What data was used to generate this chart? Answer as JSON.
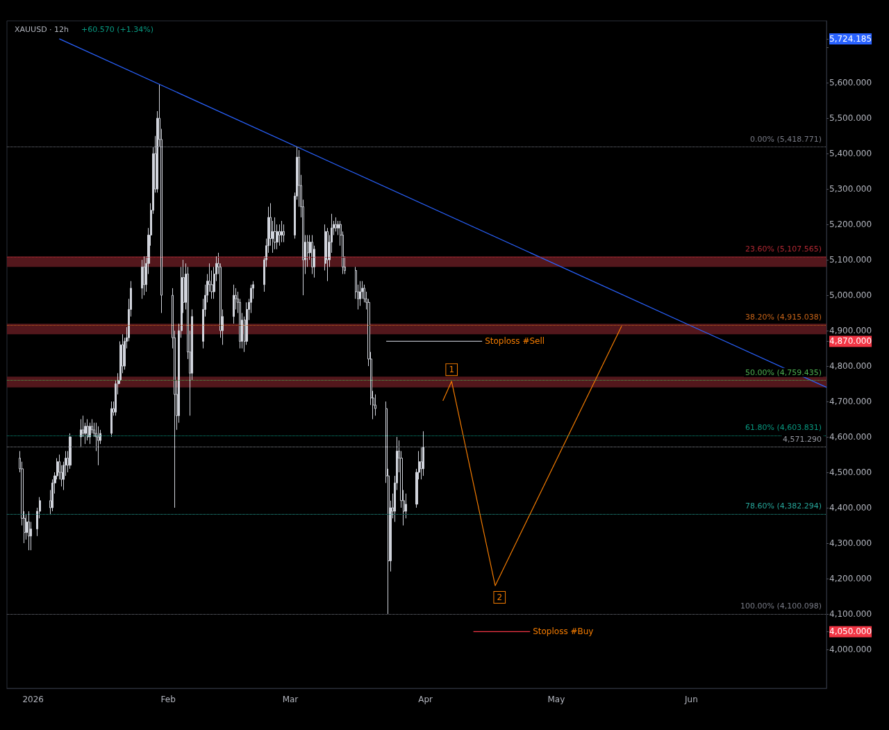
{
  "chart_data": {
    "type": "candlestick",
    "title": "XAUUSD · 12h",
    "subtitle": "+60.570 (+1.34%)",
    "xlim": [
      "2025-12-26",
      "2026-07-02"
    ],
    "xticks": [
      {
        "value": "2026-01-01",
        "label": "2026"
      },
      {
        "value": "2026-02-01",
        "label": "Feb"
      },
      {
        "value": "2026-03-01",
        "label": "Mar"
      },
      {
        "value": "2026-04-01",
        "label": "Apr"
      },
      {
        "value": "2026-05-01",
        "label": "May"
      },
      {
        "value": "2026-06-01",
        "label": "Jun"
      }
    ],
    "ylim": [
      3890,
      5775
    ],
    "yticks": [
      {
        "value": 4000,
        "label": "4,000.000"
      },
      {
        "value": 4100,
        "label": "4,100.000"
      },
      {
        "value": 4200,
        "label": "4,200.000"
      },
      {
        "value": 4300,
        "label": "4,300.000"
      },
      {
        "value": 4400,
        "label": "4,400.000"
      },
      {
        "value": 4500,
        "label": "4,500.000"
      },
      {
        "value": 4600,
        "label": "4,600.000"
      },
      {
        "value": 4700,
        "label": "4,700.000"
      },
      {
        "value": 4800,
        "label": "4,800.000"
      },
      {
        "value": 4900,
        "label": "4,900.000"
      },
      {
        "value": 5000,
        "label": "5,000.000"
      },
      {
        "value": 5100,
        "label": "5,100.000"
      },
      {
        "value": 5200,
        "label": "5,200.000"
      },
      {
        "value": 5300,
        "label": "5,300.000"
      },
      {
        "value": 5400,
        "label": "5,400.000"
      },
      {
        "value": 5500,
        "label": "5,500.000"
      },
      {
        "value": 5600,
        "label": "5,600.000"
      },
      {
        "value": 5700,
        "label": null
      },
      {
        "value": 5724.185,
        "label": "5,724.185"
      },
      {
        "value": 4870,
        "label": "4,870.000"
      },
      {
        "value": 4050,
        "label": "4,050.000"
      }
    ],
    "series": [
      {
        "color": "#d1d4dc",
        "x": [
          "2025-12-29T00:00",
          "2025-12-29T12:00",
          "2025-12-30T00:00",
          "2025-12-30T12:00",
          "2025-12-31T00:00",
          "2025-12-31T12:00",
          "2026-01-02T00:00",
          "2026-01-02T12:00",
          "2026-01-05T00:00",
          "2026-01-05T12:00",
          "2026-01-06T00:00",
          "2026-01-06T12:00",
          "2026-01-07T00:00",
          "2026-01-07T12:00",
          "2026-01-08T00:00",
          "2026-01-08T12:00",
          "2026-01-09T00:00",
          "2026-01-09T12:00",
          "2026-01-12T00:00",
          "2026-01-12T12:00",
          "2026-01-13T00:00",
          "2026-01-13T12:00",
          "2026-01-14T00:00",
          "2026-01-14T12:00",
          "2026-01-15T00:00",
          "2026-01-15T12:00",
          "2026-01-16T00:00",
          "2026-01-16T12:00",
          "2026-01-19T00:00",
          "2026-01-19T12:00",
          "2026-01-20T00:00",
          "2026-01-20T12:00",
          "2026-01-21T00:00",
          "2026-01-21T12:00",
          "2026-01-22T00:00",
          "2026-01-22T12:00",
          "2026-01-23T00:00",
          "2026-01-23T12:00",
          "2026-01-26T00:00",
          "2026-01-26T12:00",
          "2026-01-27T00:00",
          "2026-01-27T12:00",
          "2026-01-28T00:00",
          "2026-01-28T12:00",
          "2026-01-29T00:00",
          "2026-01-29T12:00",
          "2026-01-30T00:00",
          "2026-01-30T12:00",
          "2026-02-02T00:00",
          "2026-02-02T12:00",
          "2026-02-03T00:00",
          "2026-02-03T12:00",
          "2026-02-04T00:00",
          "2026-02-04T12:00",
          "2026-02-05T00:00",
          "2026-02-05T12:00",
          "2026-02-06T00:00",
          "2026-02-06T12:00",
          "2026-02-09T00:00",
          "2026-02-09T12:00",
          "2026-02-10T00:00",
          "2026-02-10T12:00",
          "2026-02-11T00:00",
          "2026-02-11T12:00",
          "2026-02-12T00:00",
          "2026-02-12T12:00",
          "2026-02-13T00:00",
          "2026-02-13T12:00",
          "2026-02-16T00:00",
          "2026-02-16T12:00",
          "2026-02-17T00:00",
          "2026-02-17T12:00",
          "2026-02-18T00:00",
          "2026-02-18T12:00",
          "2026-02-19T00:00",
          "2026-02-19T12:00",
          "2026-02-20T00:00",
          "2026-02-20T12:00",
          "2026-02-23T00:00",
          "2026-02-23T12:00",
          "2026-02-24T00:00",
          "2026-02-24T12:00",
          "2026-02-25T00:00",
          "2026-02-25T12:00",
          "2026-02-26T00:00",
          "2026-02-26T12:00",
          "2026-02-27T00:00",
          "2026-02-27T12:00",
          "2026-03-02T00:00",
          "2026-03-02T12:00",
          "2026-03-03T00:00",
          "2026-03-03T12:00",
          "2026-03-04T00:00",
          "2026-03-04T12:00",
          "2026-03-05T00:00",
          "2026-03-05T12:00",
          "2026-03-06T00:00",
          "2026-03-06T12:00",
          "2026-03-09T00:00",
          "2026-03-09T12:00",
          "2026-03-10T00:00",
          "2026-03-10T12:00",
          "2026-03-11T00:00",
          "2026-03-11T12:00",
          "2026-03-12T00:00",
          "2026-03-12T12:00",
          "2026-03-13T00:00",
          "2026-03-13T12:00",
          "2026-03-16T00:00",
          "2026-03-16T12:00",
          "2026-03-17T00:00",
          "2026-03-17T12:00",
          "2026-03-18T00:00",
          "2026-03-18T12:00",
          "2026-03-19T00:00",
          "2026-03-19T12:00",
          "2026-03-20T00:00",
          "2026-03-20T12:00",
          "2026-03-23T00:00",
          "2026-03-23T12:00",
          "2026-03-24T00:00",
          "2026-03-24T12:00",
          "2026-03-25T00:00",
          "2026-03-25T12:00",
          "2026-03-26T00:00",
          "2026-03-26T12:00",
          "2026-03-27T00:00",
          "2026-03-27T12:00",
          "2026-03-30T00:00",
          "2026-03-30T12:00",
          "2026-03-31T00:00",
          "2026-03-31T12:00"
        ],
        "ohlc": [
          [
            4540,
            4560,
            4500,
            4510
          ],
          [
            4510,
            4530,
            4350,
            4370
          ],
          [
            4370,
            4390,
            4300,
            4330
          ],
          [
            4330,
            4380,
            4310,
            4360
          ],
          [
            4360,
            4390,
            4280,
            4320
          ],
          [
            4320,
            4360,
            4280,
            4340
          ],
          [
            4340,
            4400,
            4320,
            4390
          ],
          [
            4390,
            4430,
            4370,
            4420
          ],
          [
            4420,
            4450,
            4380,
            4400
          ],
          [
            4400,
            4480,
            4390,
            4470
          ],
          [
            4470,
            4500,
            4440,
            4490
          ],
          [
            4490,
            4540,
            4480,
            4530
          ],
          [
            4530,
            4550,
            4480,
            4500
          ],
          [
            4500,
            4520,
            4460,
            4480
          ],
          [
            4480,
            4530,
            4450,
            4520
          ],
          [
            4520,
            4560,
            4490,
            4540
          ],
          [
            4540,
            4560,
            4500,
            4520
          ],
          [
            4520,
            4610,
            4510,
            4600
          ],
          [
            4600,
            4650,
            4570,
            4620
          ],
          [
            4620,
            4660,
            4600,
            4610
          ],
          [
            4610,
            4640,
            4580,
            4630
          ],
          [
            4630,
            4650,
            4590,
            4600
          ],
          [
            4600,
            4640,
            4580,
            4630
          ],
          [
            4630,
            4650,
            4610,
            4620
          ],
          [
            4620,
            4640,
            4600,
            4610
          ],
          [
            4610,
            4640,
            4560,
            4600
          ],
          [
            4600,
            4630,
            4520,
            4590
          ],
          [
            4590,
            4620,
            4580,
            4610
          ],
          [
            4610,
            4700,
            4600,
            4680
          ],
          [
            4680,
            4700,
            4660,
            4670
          ],
          [
            4670,
            4760,
            4660,
            4750
          ],
          [
            4750,
            4780,
            4720,
            4760
          ],
          [
            4760,
            4870,
            4750,
            4860
          ],
          [
            4860,
            4890,
            4780,
            4800
          ],
          [
            4800,
            4880,
            4790,
            4870
          ],
          [
            4870,
            4910,
            4850,
            4880
          ],
          [
            4880,
            4990,
            4870,
            4960
          ],
          [
            4960,
            5040,
            4940,
            5020
          ],
          [
            5020,
            5100,
            4990,
            5080
          ],
          [
            5080,
            5110,
            5000,
            5030
          ],
          [
            5030,
            5110,
            5010,
            5090
          ],
          [
            5090,
            5190,
            5060,
            5170
          ],
          [
            5170,
            5260,
            5140,
            5240
          ],
          [
            5240,
            5420,
            5230,
            5400
          ],
          [
            5400,
            5450,
            5290,
            5300
          ],
          [
            5300,
            5520,
            5290,
            5500
          ],
          [
            5500,
            5595,
            5420,
            5440
          ],
          [
            5440,
            5470,
            4950,
            5000
          ],
          [
            5000,
            5020,
            4850,
            4880
          ],
          [
            4880,
            4900,
            4400,
            4720
          ],
          [
            4720,
            4760,
            4620,
            4660
          ],
          [
            4660,
            4920,
            4640,
            4900
          ],
          [
            4900,
            5080,
            4880,
            5050
          ],
          [
            5050,
            5100,
            4950,
            4980
          ],
          [
            4980,
            5090,
            4960,
            5060
          ],
          [
            5060,
            5080,
            4820,
            4840
          ],
          [
            4840,
            4900,
            4660,
            4780
          ],
          [
            4780,
            4960,
            4760,
            4940
          ],
          [
            4870,
            4990,
            4850,
            4960
          ],
          [
            4960,
            5030,
            4940,
            5000
          ],
          [
            5000,
            5060,
            4980,
            5040
          ],
          [
            5040,
            5090,
            5010,
            5030
          ],
          [
            5030,
            5070,
            4990,
            5010
          ],
          [
            5010,
            5080,
            4990,
            5060
          ],
          [
            5060,
            5110,
            5040,
            5090
          ],
          [
            5090,
            5120,
            5060,
            5080
          ],
          [
            5080,
            5090,
            4880,
            4900
          ],
          [
            4900,
            4960,
            4860,
            4940
          ],
          [
            4940,
            5030,
            4920,
            5000
          ],
          [
            5000,
            5020,
            4960,
            4990
          ],
          [
            4990,
            5010,
            4950,
            4980
          ],
          [
            4980,
            4990,
            4850,
            4870
          ],
          [
            4870,
            4950,
            4850,
            4930
          ],
          [
            4930,
            4940,
            4840,
            4870
          ],
          [
            4870,
            4980,
            4860,
            4960
          ],
          [
            4960,
            4990,
            4930,
            4980
          ],
          [
            4980,
            5030,
            4950,
            5020
          ],
          [
            5020,
            5040,
            4990,
            5030
          ],
          [
            5030,
            5110,
            5010,
            5100
          ],
          [
            5100,
            5160,
            5080,
            5140
          ],
          [
            5140,
            5250,
            5120,
            5220
          ],
          [
            5220,
            5260,
            5140,
            5160
          ],
          [
            5160,
            5210,
            5120,
            5180
          ],
          [
            5180,
            5220,
            5130,
            5150
          ],
          [
            5150,
            5200,
            5130,
            5180
          ],
          [
            5180,
            5200,
            5140,
            5170
          ],
          [
            5170,
            5210,
            5150,
            5180
          ],
          [
            5180,
            5200,
            5150,
            5170
          ],
          [
            5170,
            5290,
            5160,
            5280
          ],
          [
            5280,
            5419,
            5270,
            5390
          ],
          [
            5390,
            5410,
            5250,
            5310
          ],
          [
            5310,
            5340,
            5220,
            5250
          ],
          [
            5250,
            5270,
            5000,
            5100
          ],
          [
            5100,
            5170,
            5060,
            5150
          ],
          [
            5150,
            5170,
            5080,
            5120
          ],
          [
            5120,
            5170,
            5100,
            5150
          ],
          [
            5150,
            5170,
            5060,
            5080
          ],
          [
            5080,
            5140,
            5050,
            5130
          ],
          [
            5090,
            5200,
            5070,
            5180
          ],
          [
            5180,
            5190,
            5040,
            5100
          ],
          [
            5100,
            5170,
            5080,
            5150
          ],
          [
            5150,
            5230,
            5120,
            5190
          ],
          [
            5190,
            5210,
            5170,
            5200
          ],
          [
            5200,
            5220,
            5180,
            5190
          ],
          [
            5190,
            5210,
            5170,
            5200
          ],
          [
            5200,
            5210,
            5140,
            5170
          ],
          [
            5170,
            5180,
            5060,
            5080
          ],
          [
            5080,
            5110,
            5060,
            5070
          ],
          [
            5070,
            5080,
            4990,
            5010
          ],
          [
            5010,
            5030,
            4960,
            4990
          ],
          [
            4990,
            5040,
            4970,
            5010
          ],
          [
            5010,
            5040,
            4990,
            5020
          ],
          [
            5020,
            5030,
            4980,
            4990
          ],
          [
            4990,
            5010,
            4960,
            4980
          ],
          [
            4980,
            4990,
            4800,
            4820
          ],
          [
            4820,
            4840,
            4690,
            4710
          ],
          [
            4710,
            4730,
            4650,
            4690
          ],
          [
            4690,
            4720,
            4660,
            4680
          ],
          [
            4680,
            4700,
            4470,
            4490
          ],
          [
            4490,
            4510,
            4100,
            4250
          ],
          [
            4250,
            4420,
            4220,
            4400
          ],
          [
            4400,
            4440,
            4370,
            4390
          ],
          [
            4390,
            4490,
            4360,
            4470
          ],
          [
            4470,
            4600,
            4450,
            4560
          ],
          [
            4560,
            4590,
            4500,
            4540
          ],
          [
            4540,
            4560,
            4400,
            4420
          ],
          [
            4420,
            4450,
            4350,
            4390
          ],
          [
            4390,
            4440,
            4370,
            4410
          ],
          [
            4410,
            4510,
            4400,
            4500
          ],
          [
            4500,
            4560,
            4480,
            4530
          ],
          [
            4530,
            4570,
            4480,
            4510
          ],
          [
            4510,
            4616,
            4490,
            4571.29
          ]
        ]
      },
      {
        "type": "line",
        "color": "#2962ff",
        "x": [
          "2026-01-07",
          "2026-07-02"
        ],
        "values": [
          5724.185,
          4740
        ]
      },
      {
        "type": "line",
        "color": "#f57c00",
        "x": [
          "2026-04-05",
          "2026-04-07",
          "2026-04-17",
          "2026-05-16"
        ],
        "values": [
          4702,
          4757,
          4180,
          4913
        ]
      },
      {
        "type": "line",
        "color": "#b2b5be",
        "x": [
          "2026-03-23",
          "2026-04-14"
        ],
        "values": [
          4870,
          4870
        ]
      },
      {
        "type": "line",
        "color": "#f23645",
        "x": [
          "2026-04-12",
          "2026-04-25"
        ],
        "values": [
          4050,
          4050
        ]
      }
    ],
    "ref_lines": [
      {
        "axis": "y",
        "value": 5418.771,
        "label": "0.00% (5,418.771)",
        "color": "#787b86",
        "line_style": "dotted"
      },
      {
        "axis": "y",
        "value": 5107.565,
        "label": "23.60% (5,107.565)",
        "color": "#b22833",
        "line_style": "dotted"
      },
      {
        "axis": "y",
        "value": 4915.038,
        "label": "38.20% (4,915.038)",
        "color": "#c86418",
        "line_style": "dotted"
      },
      {
        "axis": "y",
        "value": 4759.435,
        "label": "50.00% (4,759.435)",
        "color": "#4caf50",
        "line_style": "dotted"
      },
      {
        "axis": "y",
        "value": 4603.831,
        "label": "61.80% (4,603.831)",
        "color": "#089981",
        "line_style": "dotted"
      },
      {
        "axis": "y",
        "value": 4382.294,
        "label": "78.60% (4,382.294)",
        "color": "#26a69a",
        "line_style": "dotted"
      },
      {
        "axis": "y",
        "value": 4100.098,
        "label": "100.00% (4,100.098)",
        "color": "#787b86",
        "line_style": "dotted"
      },
      {
        "axis": "y",
        "value": 4571.29,
        "label": "4,571.290",
        "color": "#9598a1",
        "line_style": "dotted"
      }
    ],
    "bands": [
      {
        "axis": "y",
        "from": 5080,
        "to": 5110,
        "color": "#5c1a1f"
      },
      {
        "axis": "y",
        "from": 4890,
        "to": 4920,
        "color": "#5c1a1f"
      },
      {
        "axis": "y",
        "from": 4740,
        "to": 4770,
        "color": "#5c1a1f"
      }
    ],
    "annotations": [
      {
        "text": "Stoploss #Sell",
        "x": "2026-04-14",
        "y": 4870
      },
      {
        "text": "Stoploss #Buy",
        "x": "2026-04-25",
        "y": 4050
      },
      {
        "text": "1",
        "x": "2026-04-07",
        "y": 4790
      },
      {
        "text": "2",
        "x": "2026-04-18",
        "y": 4147
      }
    ]
  }
}
